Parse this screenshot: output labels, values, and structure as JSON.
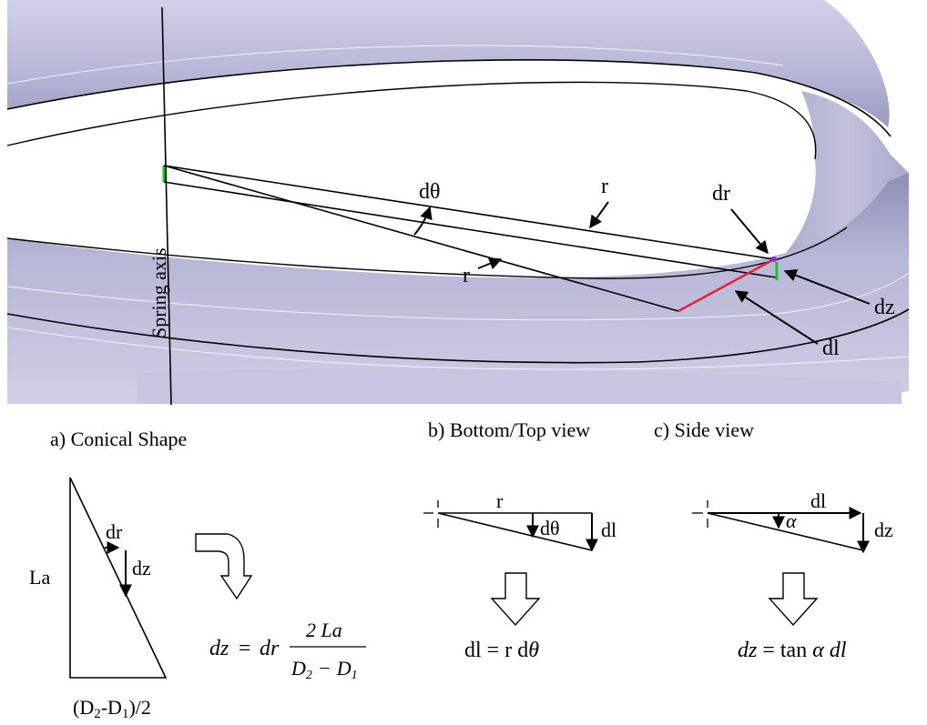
{
  "colors": {
    "spring_surface": "#b9b9d9",
    "spring_shadow": "#9c9cc2",
    "spring_highlight": "#e2e2f2",
    "background": "#ffffff",
    "dl_segment": "#e8203a",
    "dz_segment": "#20c020",
    "dr_point": "#8a2be2"
  },
  "top_panel": {
    "axis_label": "Spring axis",
    "labels": {
      "dtheta": "dθ",
      "r_upper": "r",
      "r_lower": "r",
      "dr": "dr",
      "dz": "dz",
      "dl": "dl"
    }
  },
  "captions": {
    "a": "a) Conical Shape",
    "b": "b) Bottom/Top view",
    "c": "c) Side view"
  },
  "panel_a": {
    "la": "La",
    "dr": "dr",
    "dz": "dz",
    "base": "(D",
    "base_sub2": "2",
    "base_mid": "-D",
    "base_sub1": "1",
    "base_end": ")/2",
    "formula": {
      "lhs": "dz",
      "eq": "=",
      "dr": "dr",
      "num": "2 La",
      "den_d2": "D",
      "den_sub2": "2",
      "den_minus": "−",
      "den_d1": "D",
      "den_sub1": "1"
    }
  },
  "panel_b": {
    "r": "r",
    "dtheta": "dθ",
    "dl": "dl",
    "formula_lhs": "dl = r d",
    "formula_theta": "θ"
  },
  "panel_c": {
    "dl": "dl",
    "alpha": "α",
    "dz": "dz",
    "formula_dz": "dz",
    "formula_mid": " = tan ",
    "formula_alpha": "α",
    "formula_dl": " dl"
  }
}
